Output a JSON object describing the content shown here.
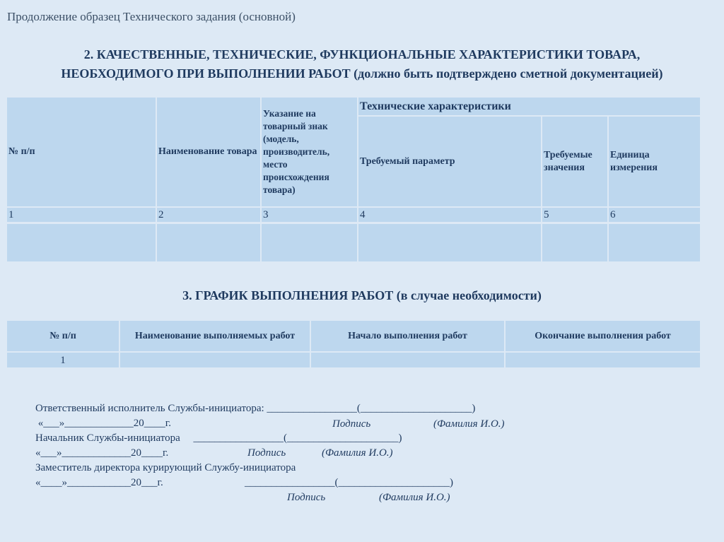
{
  "slide_title": "Продолжение образец Технического задания (основной)",
  "section2": {
    "line1": "2. КАЧЕСТВЕННЫЕ, ТЕХНИЧЕСКИЕ, ФУНКЦИОНАЛЬНЫЕ ХАРАКТЕРИСТИКИ ТОВАРА,",
    "line2": "НЕОБХОДИМОГО ПРИ ВЫПОЛНЕНИИ РАБОТ (должно быть подтверждено сметной документацией)"
  },
  "table1": {
    "headers": [
      "№ п/п",
      "Наименование товара",
      "Указание на товарный знак (модель, производитель, место происхождения товара)",
      "Технические характеристики",
      "Требуемый параметр",
      "Требуемые значения",
      "Единица измерения"
    ],
    "numbers": [
      "1",
      "2",
      "3",
      "4",
      "5",
      "6"
    ]
  },
  "section3": {
    "title": "3. ГРАФИК ВЫПОЛНЕНИЯ РАБОТ (в случае необходимости)"
  },
  "table2": {
    "headers": [
      "№ п/п",
      "Наименование выполняемых работ",
      "Начало выполнения работ",
      "Окончание выполнения работ"
    ],
    "row": [
      "1",
      "",
      "",
      ""
    ]
  },
  "signatures": {
    "l1": "Ответственный исполнитель Службы-инициатора: _________________(_____________________)",
    "l2": " «___»_____________20____г.",
    "sign": "Подпись",
    "fio": "(Фамилия И.О.)",
    "l3": "Начальник Службы-инициатора     _________________(_____________________)",
    "l4": "«___»_____________20____г.",
    "l5": "Заместитель директора курирующий Службу-инициатора",
    "l6": "«____»____________20___г.",
    "l6b": "_________________(_____________________)"
  }
}
